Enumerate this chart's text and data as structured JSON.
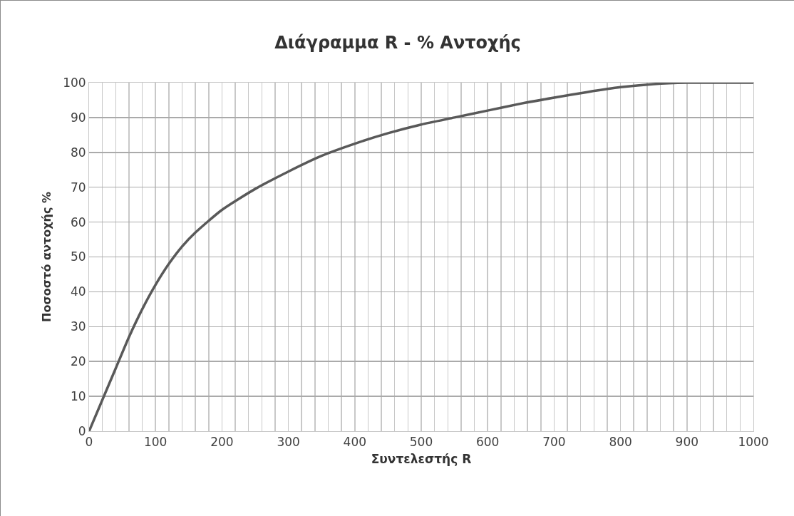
{
  "chart_data": {
    "type": "line",
    "title": "Διάγραμμα R - % Αντοχής",
    "xlabel": "Συντελεστής R",
    "ylabel": "Ποσοστό αντοχής %",
    "x": [
      0,
      20,
      40,
      60,
      80,
      100,
      120,
      140,
      160,
      200,
      250,
      300,
      350,
      400,
      450,
      500,
      550,
      600,
      650,
      700,
      750,
      800,
      850,
      900,
      950,
      1000
    ],
    "series": [
      {
        "color": "#595959",
        "values": [
          0,
          9,
          18,
          27,
          35,
          42,
          48,
          53,
          57,
          63.5,
          69.5,
          74.5,
          79,
          82.5,
          85.5,
          88,
          90,
          92,
          94,
          95.7,
          97.3,
          98.7,
          99.6,
          100,
          100,
          100
        ]
      }
    ],
    "xlim": [
      0,
      1000
    ],
    "ylim": [
      0,
      100
    ],
    "xticks": [
      0,
      {
        "value": 20,
        "label": null
      },
      {
        "value": 40,
        "label": null
      },
      {
        "value": 60,
        "label": null
      },
      {
        "value": 80,
        "label": null
      },
      100,
      {
        "value": 120,
        "label": null
      },
      {
        "value": 140,
        "label": null
      },
      {
        "value": 160,
        "label": null
      },
      {
        "value": 180,
        "label": null
      },
      200,
      {
        "value": 220,
        "label": null
      },
      {
        "value": 240,
        "label": null
      },
      {
        "value": 260,
        "label": null
      },
      {
        "value": 280,
        "label": null
      },
      300,
      {
        "value": 320,
        "label": null
      },
      {
        "value": 340,
        "label": null
      },
      {
        "value": 360,
        "label": null
      },
      {
        "value": 380,
        "label": null
      },
      400,
      {
        "value": 420,
        "label": null
      },
      {
        "value": 440,
        "label": null
      },
      {
        "value": 460,
        "label": null
      },
      {
        "value": 480,
        "label": null
      },
      500,
      {
        "value": 520,
        "label": null
      },
      {
        "value": 540,
        "label": null
      },
      {
        "value": 560,
        "label": null
      },
      {
        "value": 580,
        "label": null
      },
      600,
      {
        "value": 620,
        "label": null
      },
      {
        "value": 640,
        "label": null
      },
      {
        "value": 660,
        "label": null
      },
      {
        "value": 680,
        "label": null
      },
      700,
      {
        "value": 720,
        "label": null
      },
      {
        "value": 740,
        "label": null
      },
      {
        "value": 760,
        "label": null
      },
      {
        "value": 780,
        "label": null
      },
      800,
      {
        "value": 820,
        "label": null
      },
      {
        "value": 840,
        "label": null
      },
      {
        "value": 860,
        "label": null
      },
      {
        "value": 880,
        "label": null
      },
      900,
      {
        "value": 920,
        "label": null
      },
      {
        "value": 940,
        "label": null
      },
      {
        "value": 960,
        "label": null
      },
      {
        "value": 980,
        "label": null
      },
      1000
    ],
    "yticks": [
      0,
      10,
      20,
      30,
      40,
      50,
      60,
      70,
      80,
      90,
      100
    ],
    "grid": true,
    "legend": false,
    "marker": "none",
    "line_style": "solid"
  }
}
